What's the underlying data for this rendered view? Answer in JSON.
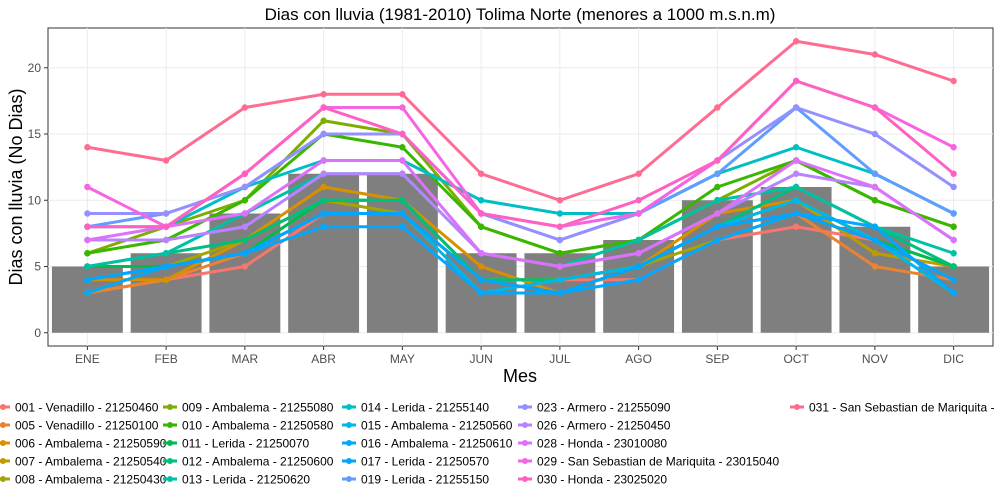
{
  "chart_data": {
    "type": "bar",
    "title": "Dias con lluvia (1981-2010) Tolima Norte (menores a 1000 m.s.n.m)",
    "xlabel": "Mes",
    "ylabel": "Dias con lluvia (No Dias)",
    "categories": [
      "ENE",
      "FEB",
      "MAR",
      "ABR",
      "MAY",
      "JUN",
      "JUL",
      "AGO",
      "SEP",
      "OCT",
      "NOV",
      "DIC"
    ],
    "ylim": [
      -1,
      23
    ],
    "yticks": [
      0,
      5,
      10,
      15,
      20
    ],
    "grid": true,
    "legend_position": "bottom",
    "bar_color": "#7f7f7f",
    "bars": [
      5,
      6,
      9,
      12,
      12,
      6,
      6,
      7,
      10,
      11,
      8,
      5
    ],
    "series": [
      {
        "name": "001 - Venadillo - 21250460",
        "color": "#f8766d",
        "values": [
          3,
          4,
          5,
          9,
          9,
          4,
          4,
          4,
          7,
          8,
          7,
          4
        ]
      },
      {
        "name": "005 - Venadillo - 21250100",
        "color": "#ea8331",
        "values": [
          3,
          4,
          6,
          10,
          10,
          4,
          3,
          5,
          8,
          9,
          5,
          4
        ]
      },
      {
        "name": "006 - Ambalema - 21250590",
        "color": "#d89000",
        "values": [
          4,
          4,
          7,
          11,
          10,
          5,
          3,
          5,
          9,
          10,
          7,
          5
        ]
      },
      {
        "name": "007 - Ambalema - 21250540",
        "color": "#c09b00",
        "values": [
          4,
          5,
          6,
          9,
          9,
          4,
          4,
          5,
          8,
          10,
          6,
          5
        ]
      },
      {
        "name": "008 - Ambalema - 21250430",
        "color": "#a3a500",
        "values": [
          3,
          5,
          7,
          10,
          9,
          4,
          4,
          5,
          7,
          9,
          7,
          4
        ]
      },
      {
        "name": "009 - Ambalema - 21255080",
        "color": "#7cae00",
        "values": [
          6,
          8,
          10,
          16,
          15,
          8,
          6,
          7,
          10,
          13,
          10,
          8
        ]
      },
      {
        "name": "010 - Ambalema - 21250580",
        "color": "#39b600",
        "values": [
          6,
          7,
          10,
          15,
          14,
          8,
          6,
          7,
          11,
          13,
          10,
          8
        ]
      },
      {
        "name": "011 - Lerida - 21250070",
        "color": "#00bb4e",
        "values": [
          5,
          5,
          6,
          10,
          10,
          4,
          3,
          5,
          8,
          10,
          7,
          5
        ]
      },
      {
        "name": "012 - Ambalema - 21250600",
        "color": "#00bf7d",
        "values": [
          5,
          6,
          7,
          10,
          10,
          4,
          4,
          5,
          8,
          11,
          8,
          5
        ]
      },
      {
        "name": "013 - Lerida - 21250620",
        "color": "#00c1a3",
        "values": [
          5,
          6,
          9,
          12,
          12,
          6,
          5,
          7,
          10,
          11,
          8,
          6
        ]
      },
      {
        "name": "014 - Lerida - 21255140",
        "color": "#00bfc4",
        "values": [
          8,
          8,
          11,
          13,
          13,
          10,
          9,
          9,
          12,
          14,
          12,
          9
        ]
      },
      {
        "name": "015 - Ambalema - 21250560",
        "color": "#00b8e7",
        "values": [
          4,
          5,
          6,
          9,
          9,
          3,
          4,
          5,
          8,
          10,
          7,
          3
        ]
      },
      {
        "name": "016 - Ambalema - 21250610",
        "color": "#00a9ff",
        "values": [
          3,
          5,
          6,
          8,
          8,
          3,
          3,
          4,
          7,
          9,
          8,
          3
        ]
      },
      {
        "name": "017 - Lerida - 21250570",
        "color": "#00a5ff",
        "values": [
          4,
          5,
          6,
          9,
          9,
          4,
          3,
          5,
          8,
          9,
          7,
          4
        ]
      },
      {
        "name": "019 - Lerida - 21255150",
        "color": "#619cff",
        "values": [
          8,
          9,
          11,
          15,
          15,
          9,
          7,
          9,
          12,
          17,
          12,
          9
        ]
      },
      {
        "name": "023 - Armero - 21255090",
        "color": "#9590ff",
        "values": [
          9,
          9,
          11,
          15,
          15,
          9,
          7,
          9,
          13,
          17,
          15,
          11
        ]
      },
      {
        "name": "026 - Armero - 21250450",
        "color": "#b983ff",
        "values": [
          7,
          7,
          8,
          12,
          12,
          6,
          5,
          6,
          9,
          12,
          11,
          7
        ]
      },
      {
        "name": "028 - Honda - 23010080",
        "color": "#dc71fa",
        "values": [
          7,
          8,
          9,
          13,
          13,
          6,
          5,
          6,
          9,
          13,
          11,
          7
        ]
      },
      {
        "name": "029 - San Sebastian de Mariquita - 23015040",
        "color": "#f564e3",
        "values": [
          11,
          8,
          12,
          17,
          17,
          9,
          8,
          9,
          13,
          19,
          17,
          14
        ]
      },
      {
        "name": "030 - Honda - 23025020",
        "color": "#ff61c3",
        "values": [
          8,
          8,
          12,
          17,
          15,
          9,
          8,
          10,
          13,
          19,
          17,
          12
        ]
      },
      {
        "name": "031 - San Sebastian de Mariquita -",
        "color": "#ff6c91",
        "values": [
          14,
          13,
          17,
          18,
          18,
          12,
          10,
          12,
          17,
          22,
          21,
          19
        ]
      }
    ]
  }
}
